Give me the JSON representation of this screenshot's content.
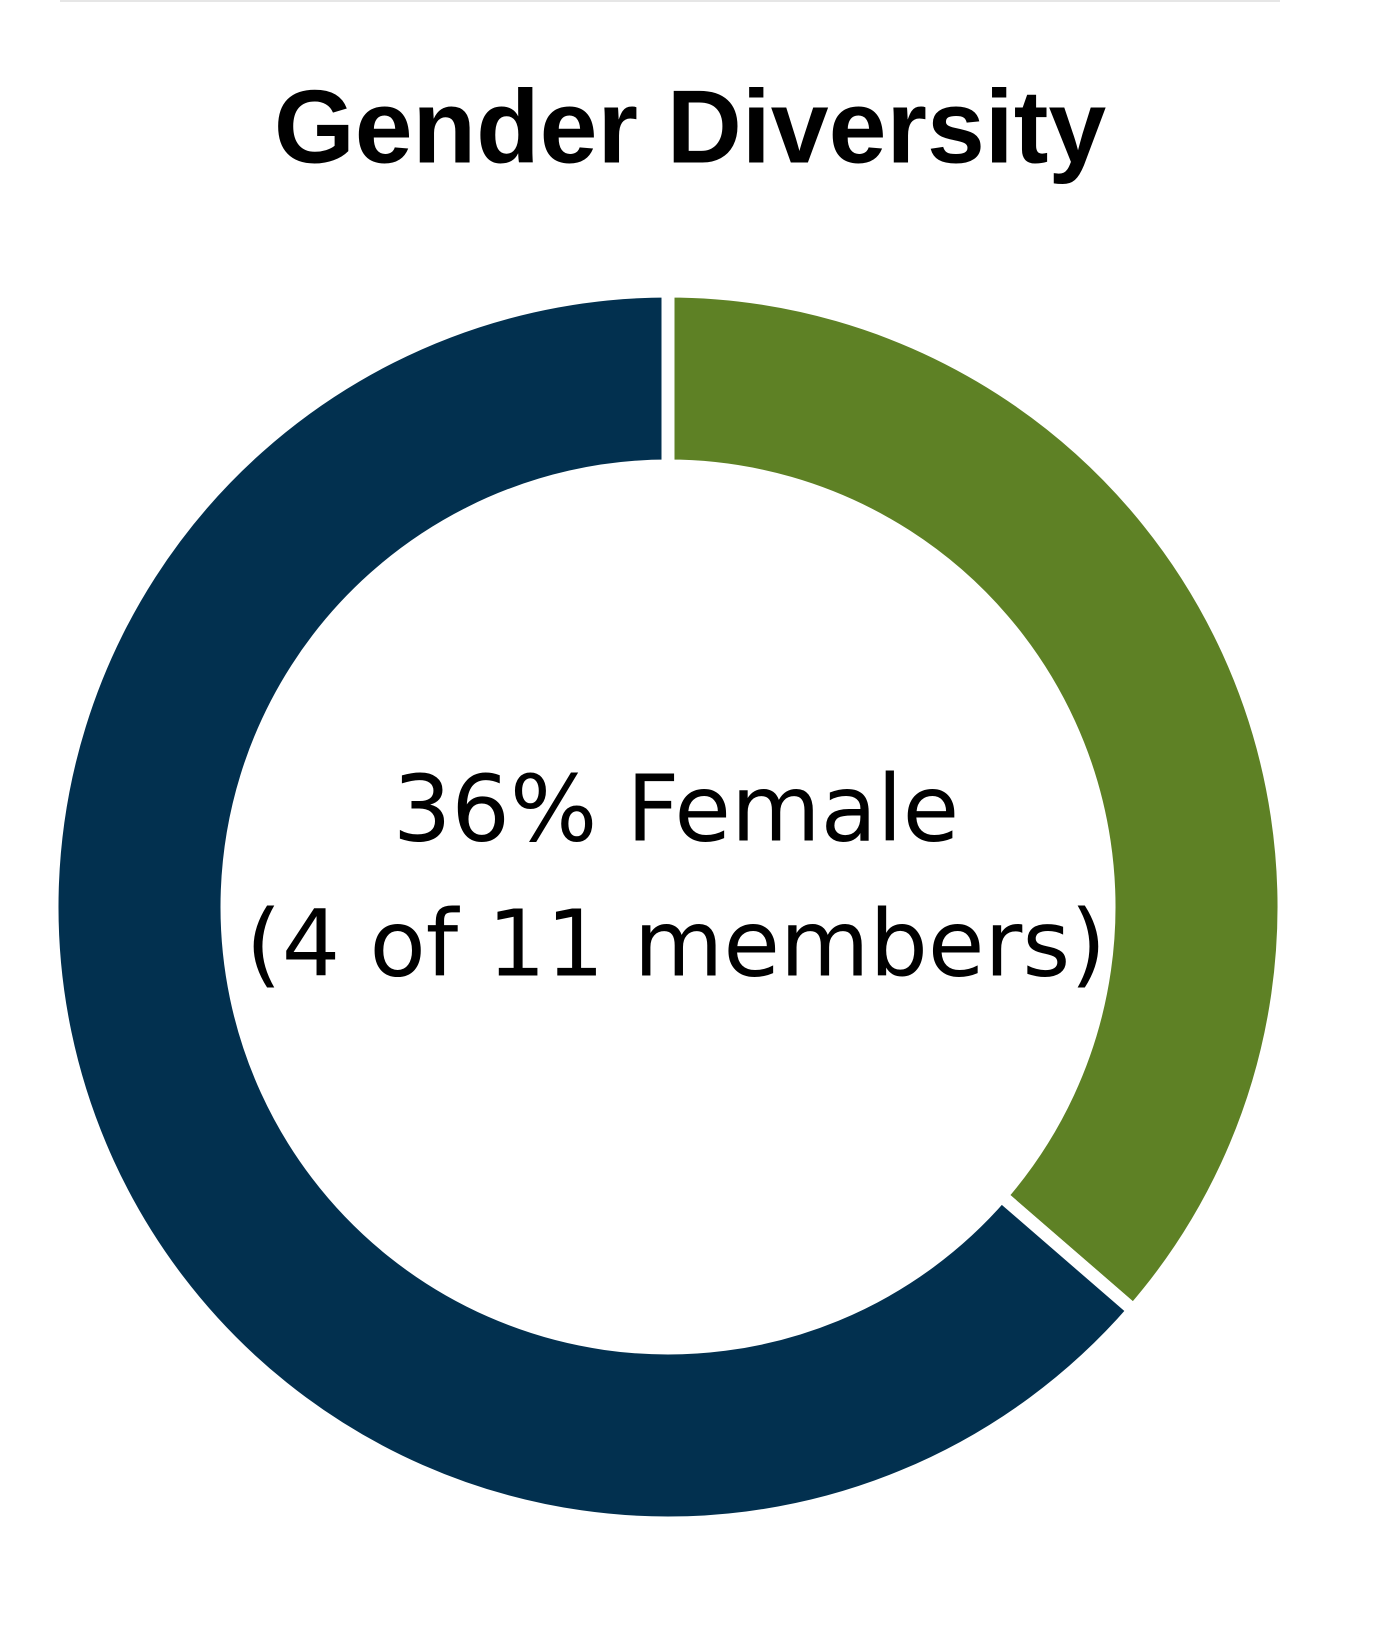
{
  "chart_data": {
    "type": "donut",
    "title": "Gender Diversity",
    "annotations": [
      "36% Female",
      "(4 of 11 members)"
    ],
    "categories": [
      null,
      null
    ],
    "values": [
      4,
      7
    ],
    "colors": [
      "#5e8125",
      "#02304f"
    ],
    "start": "top",
    "direction": "clockwise"
  }
}
